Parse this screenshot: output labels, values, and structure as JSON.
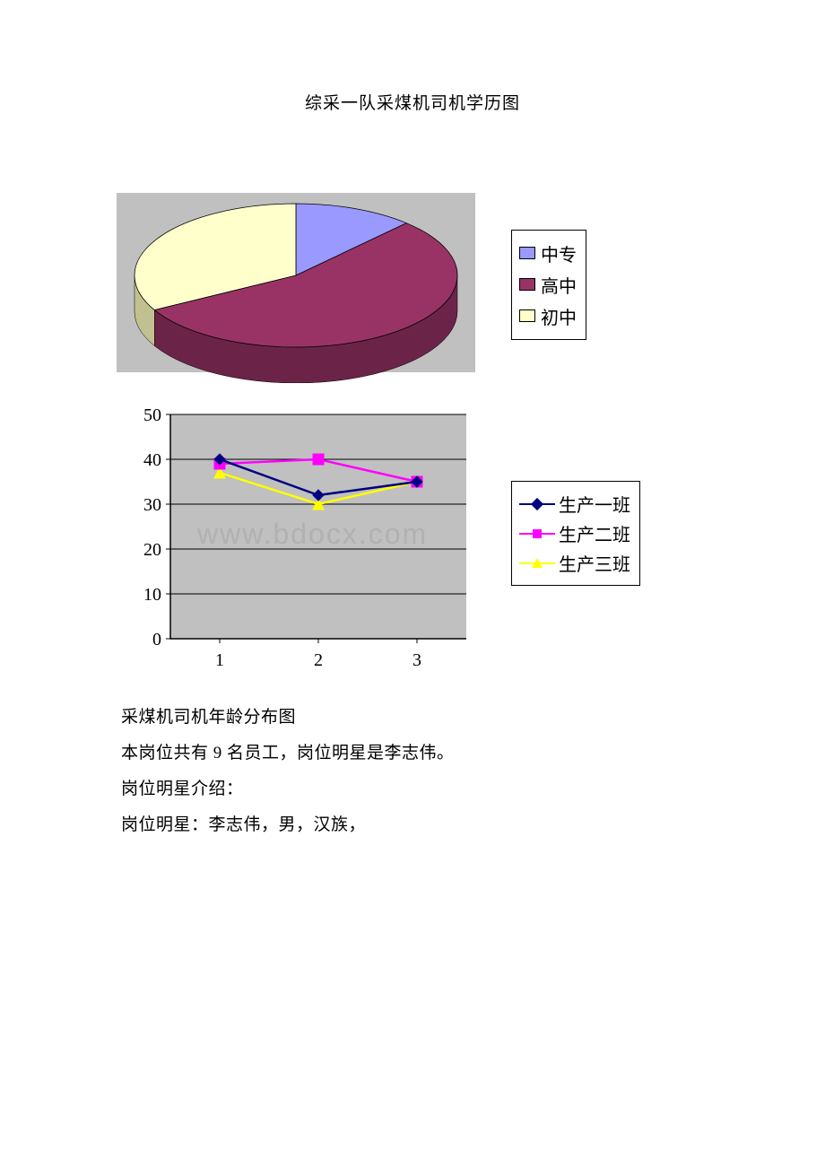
{
  "page": {
    "title": "综采一队采煤机司机学历图"
  },
  "pie_chart": {
    "type": "pie-3d",
    "plot_bg": "#c0c0c0",
    "slices": [
      {
        "label": "中专",
        "value": 12,
        "color_top": "#9999ff",
        "color_side": "#6666cc"
      },
      {
        "label": "高中",
        "value": 55,
        "color_top": "#993366",
        "color_side": "#6b2447"
      },
      {
        "label": "初中",
        "value": 33,
        "color_top": "#ffffcc",
        "color_side": "#c0c090"
      }
    ],
    "legend": {
      "border_color": "#000000",
      "bg": "#ffffff",
      "font_size": 20
    }
  },
  "line_chart": {
    "type": "line",
    "plot_bg": "#c0c0c0",
    "grid_color": "#000000",
    "x_categories": [
      "1",
      "2",
      "3"
    ],
    "y_min": 0,
    "y_max": 50,
    "y_tick_step": 10,
    "axis_font_size": 20,
    "series": [
      {
        "name": "生产一班",
        "color": "#000080",
        "marker": "diamond",
        "values": [
          40,
          32,
          35
        ]
      },
      {
        "name": "生产二班",
        "color": "#ff00ff",
        "marker": "square",
        "values": [
          39,
          40,
          35
        ]
      },
      {
        "name": "生产三班",
        "color": "#ffff00",
        "marker": "triangle",
        "values": [
          37,
          30,
          35
        ]
      }
    ],
    "legend": {
      "border_color": "#000000",
      "bg": "#ffffff",
      "font_size": 20
    },
    "watermark": "www.bdocx.com"
  },
  "body_text": {
    "line1": "采煤机司机年龄分布图",
    "line2": "本岗位共有 9 名员工，岗位明星是李志伟。",
    "line3": "岗位明星介绍：",
    "line4": "岗位明星：李志伟，男，汉族，"
  }
}
